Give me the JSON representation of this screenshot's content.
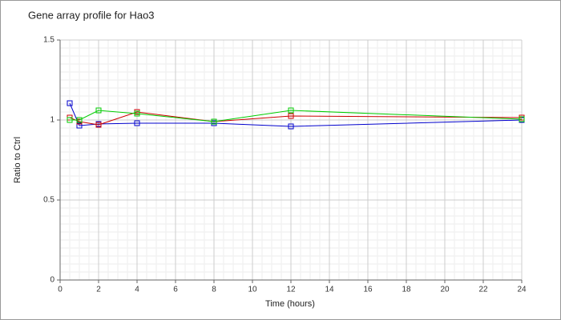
{
  "chart_data": {
    "type": "line",
    "title": "Gene array profile for Hao3",
    "x_label": "Time (hours)",
    "y_label": "Ratio to Ctrl",
    "x": [
      0.5,
      1,
      2,
      4,
      8,
      12,
      24
    ],
    "series": [
      {
        "color": "#0000cc",
        "values": [
          1.105,
          0.965,
          0.975,
          0.98,
          0.98,
          0.96,
          1.0
        ]
      },
      {
        "color": "#cc0000",
        "values": [
          1.015,
          0.99,
          0.97,
          1.05,
          0.99,
          1.025,
          1.015
        ]
      },
      {
        "color": "#00cc00",
        "values": [
          1.0,
          1.0,
          1.06,
          1.04,
          0.99,
          1.06,
          1.005
        ]
      }
    ],
    "xlim": [
      0,
      24
    ],
    "xticks": [
      0,
      2,
      4,
      6,
      8,
      10,
      12,
      14,
      16,
      18,
      20,
      22,
      24
    ],
    "ylim": [
      0,
      1.5
    ],
    "yticks": [
      0,
      0.5,
      1,
      1.5
    ],
    "grid": true,
    "minor_grid": true
  }
}
